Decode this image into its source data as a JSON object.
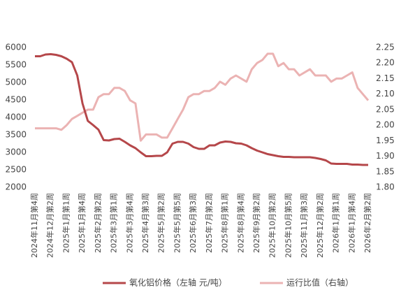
{
  "chart_data": {
    "type": "line",
    "categories": [
      "2024年11月第4周",
      null,
      null,
      "2024年12月第2周",
      null,
      null,
      "2025年1月第1周",
      null,
      null,
      "2025年1月第4周",
      null,
      null,
      "2025年2月第2周",
      null,
      null,
      "2025年3月第1周",
      null,
      null,
      "2025年3月第4周",
      null,
      null,
      "2025年4月第3周",
      null,
      null,
      "2025年5月第2周",
      null,
      null,
      "2025年5月第5周",
      null,
      null,
      "2025年6月第3周",
      null,
      null,
      "2025年7月第2周",
      null,
      null,
      "2025年8月第1周",
      null,
      null,
      "2025年8月第4周",
      null,
      null,
      "2025年9月第2周",
      null,
      null,
      "2025年10月第2周",
      null,
      null,
      "2025年10月第5周",
      null,
      null,
      "2025年11月第3周",
      null,
      null,
      "2025年12月第2周",
      null,
      null,
      "2026年1月第1周",
      null,
      null,
      "2026年1月第4周",
      null,
      null,
      "2026年2月第2周"
    ],
    "series": [
      {
        "name": "氧化铝价格（左轴 元/吨）",
        "color": "#b5474a",
        "axis": "y",
        "values": [
          5750,
          5750,
          5800,
          5810,
          5790,
          5750,
          5680,
          5580,
          5200,
          4400,
          3900,
          3780,
          3650,
          3350,
          3340,
          3380,
          3390,
          3300,
          3200,
          3120,
          3000,
          2890,
          2890,
          2900,
          2900,
          3000,
          3250,
          3300,
          3300,
          3250,
          3150,
          3100,
          3100,
          3200,
          3200,
          3280,
          3310,
          3300,
          3260,
          3250,
          3200,
          3120,
          3050,
          3000,
          2950,
          2920,
          2890,
          2870,
          2870,
          2860,
          2860,
          2860,
          2860,
          2840,
          2810,
          2770,
          2680,
          2670,
          2670,
          2670,
          2650,
          2650,
          2640,
          2640
        ]
      },
      {
        "name": "运行比值（右轴）",
        "color": "#ebb3b3",
        "axis": "y2",
        "values": [
          1.99,
          1.99,
          1.99,
          1.99,
          1.99,
          1.985,
          2.0,
          2.02,
          2.03,
          2.04,
          2.05,
          2.05,
          2.09,
          2.1,
          2.1,
          2.12,
          2.12,
          2.11,
          2.08,
          2.07,
          1.95,
          1.97,
          1.97,
          1.97,
          1.96,
          1.96,
          1.99,
          2.02,
          2.05,
          2.09,
          2.1,
          2.1,
          2.11,
          2.11,
          2.12,
          2.14,
          2.13,
          2.15,
          2.16,
          2.15,
          2.14,
          2.18,
          2.2,
          2.21,
          2.23,
          2.23,
          2.19,
          2.2,
          2.18,
          2.18,
          2.16,
          2.17,
          2.18,
          2.16,
          2.16,
          2.16,
          2.14,
          2.15,
          2.15,
          2.16,
          2.17,
          2.12,
          2.1,
          2.08
        ]
      }
    ],
    "ylim": [
      2000,
      6000
    ],
    "yticks": [
      2000,
      2500,
      3000,
      3500,
      4000,
      4500,
      5000,
      5500,
      6000
    ],
    "y2lim": [
      1.8,
      2.25
    ],
    "y2ticks": [
      {
        "value": 1.8,
        "label": "1.80"
      },
      {
        "value": 1.85,
        "label": "1.85"
      },
      {
        "value": 1.9,
        "label": "1.90"
      },
      {
        "value": 1.95,
        "label": "1.95"
      },
      {
        "value": 2.0,
        "label": "2.00"
      },
      {
        "value": 2.05,
        "label": "2.05"
      },
      {
        "value": 2.1,
        "label": "2.10"
      },
      {
        "value": 2.15,
        "label": "2.15"
      },
      {
        "value": 2.2,
        "label": "2.20"
      },
      {
        "value": 2.25,
        "label": "2.25"
      }
    ],
    "grid": false,
    "legend": "bottom"
  }
}
